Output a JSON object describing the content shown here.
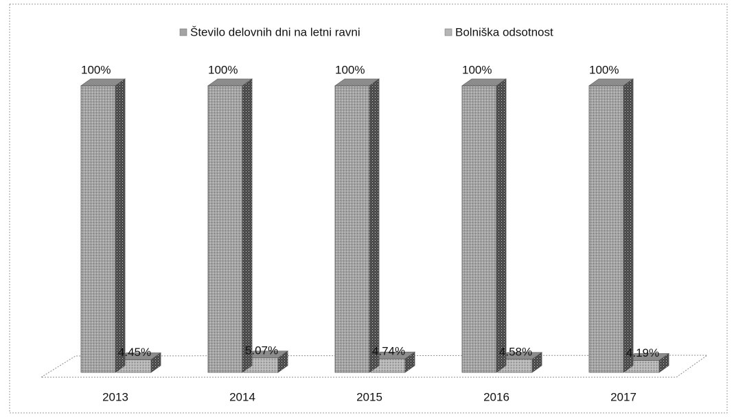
{
  "chart_data": {
    "type": "bar3d",
    "categories": [
      "2013",
      "2014",
      "2015",
      "2016",
      "2017"
    ],
    "series": [
      {
        "name": "Število delovnih dni na letni ravni",
        "color": "#a3a3a3",
        "values": [
          100,
          100,
          100,
          100,
          100
        ],
        "value_labels": [
          "100%",
          "100%",
          "100%",
          "100%",
          "100%"
        ]
      },
      {
        "name": "Bolniška odsotnost",
        "color": "#b5b5b5",
        "values": [
          4.45,
          5.07,
          4.74,
          4.58,
          4.19
        ],
        "value_labels": [
          "4.45%",
          "5.07%",
          "4.74%",
          "4.58%",
          "4.19%"
        ]
      }
    ],
    "ylim": [
      0,
      100
    ],
    "legend": "top"
  }
}
